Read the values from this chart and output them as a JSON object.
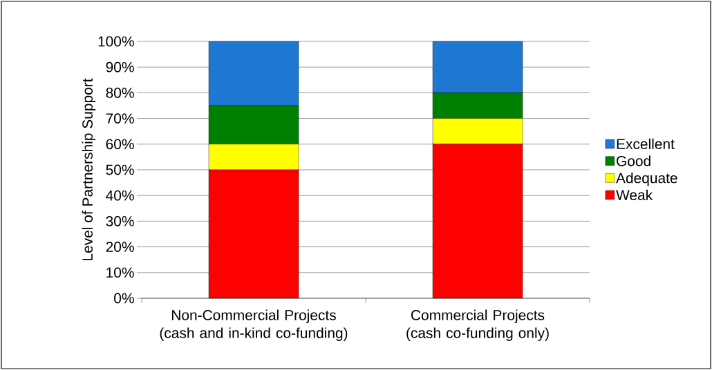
{
  "chart_data": {
    "type": "bar",
    "stacked": true,
    "ylabel": "Level of Partnership Support",
    "categories": [
      "Non-Commercial Projects (cash and in-kind co-funding)",
      "Commercial Projects (cash co-funding only)"
    ],
    "series": [
      {
        "name": "Weak",
        "color": "#ff0000",
        "values": [
          50,
          60
        ]
      },
      {
        "name": "Adequate",
        "color": "#ffff00",
        "values": [
          10,
          10
        ]
      },
      {
        "name": "Good",
        "color": "#008000",
        "values": [
          15,
          10
        ]
      },
      {
        "name": "Excellent",
        "color": "#1e78d2",
        "values": [
          25,
          20
        ]
      }
    ],
    "ylim": [
      0,
      100
    ],
    "yticks": [
      {
        "value": 0,
        "label": "0%"
      },
      {
        "value": 10,
        "label": "10%"
      },
      {
        "value": 20,
        "label": "20%"
      },
      {
        "value": 30,
        "label": "30%"
      },
      {
        "value": 40,
        "label": "40%"
      },
      {
        "value": 50,
        "label": "50%"
      },
      {
        "value": 60,
        "label": "60%"
      },
      {
        "value": 70,
        "label": "70%"
      },
      {
        "value": 80,
        "label": "80%"
      },
      {
        "value": 90,
        "label": "90%"
      },
      {
        "value": 100,
        "label": "100%"
      }
    ],
    "grid": "y",
    "legend": "right"
  }
}
